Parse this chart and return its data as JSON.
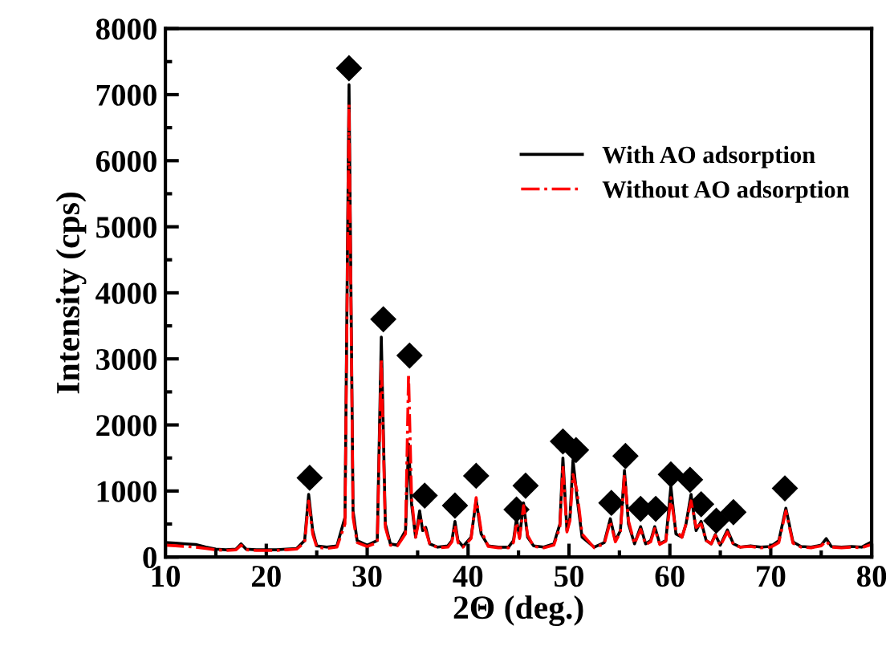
{
  "chart_data": {
    "type": "line",
    "xlabel": "2Θ (deg.)",
    "ylabel": "Intensity (cps)",
    "xlim": [
      10,
      80
    ],
    "xticks": [
      10,
      20,
      30,
      40,
      50,
      60,
      70,
      80
    ],
    "ylim": [
      0,
      8000
    ],
    "yticks": [
      0,
      1000,
      2000,
      3000,
      4000,
      5000,
      6000,
      7000,
      8000
    ],
    "grid": false,
    "legend": "top right",
    "x": [
      10,
      11,
      12,
      13,
      14,
      15,
      16,
      17,
      17.5,
      18,
      19,
      20,
      21,
      22,
      23,
      23.8,
      24.2,
      24.6,
      25,
      26,
      27,
      27.8,
      28.2,
      28.6,
      29,
      30,
      31,
      31.4,
      31.8,
      32.3,
      33,
      33.8,
      34.1,
      34.4,
      34.8,
      35.2,
      35.5,
      35.8,
      36.2,
      37,
      38,
      38.4,
      38.7,
      39,
      39.5,
      40.3,
      40.8,
      41.3,
      42,
      43,
      44,
      44.5,
      44.8,
      45.1,
      45.5,
      45.9,
      46.5,
      47.5,
      48.5,
      49.1,
      49.4,
      49.8,
      50.1,
      50.4,
      50.8,
      51.3,
      52.5,
      53.5,
      54.1,
      54.6,
      55.1,
      55.5,
      55.9,
      56.5,
      57.1,
      57.6,
      58.1,
      58.5,
      59,
      59.6,
      60.1,
      60.6,
      61.2,
      61.6,
      62.1,
      62.6,
      63.1,
      63.6,
      64.1,
      64.5,
      65,
      65.7,
      66.3,
      67,
      68,
      69,
      70,
      70.8,
      71.5,
      72.2,
      73,
      74,
      75,
      75.5,
      76,
      77,
      78,
      79,
      80
    ],
    "series": [
      {
        "name": "With AO adsorption",
        "color": "#000000",
        "line_style": "solid",
        "marker": "none",
        "values": [
          220,
          210,
          200,
          190,
          150,
          120,
          110,
          120,
          200,
          120,
          110,
          110,
          110,
          120,
          130,
          250,
          950,
          400,
          170,
          150,
          170,
          600,
          7150,
          700,
          250,
          180,
          250,
          3330,
          500,
          200,
          180,
          400,
          1710,
          800,
          300,
          700,
          400,
          450,
          200,
          150,
          170,
          250,
          540,
          250,
          160,
          300,
          860,
          350,
          170,
          150,
          150,
          250,
          580,
          300,
          820,
          300,
          170,
          150,
          200,
          500,
          1500,
          400,
          600,
          1470,
          900,
          300,
          150,
          220,
          580,
          250,
          400,
          1310,
          500,
          200,
          460,
          200,
          250,
          460,
          200,
          250,
          1070,
          350,
          300,
          500,
          950,
          400,
          540,
          250,
          200,
          340,
          180,
          410,
          200,
          150,
          170,
          150,
          160,
          250,
          740,
          230,
          160,
          150,
          180,
          280,
          160,
          150,
          160,
          150,
          230
        ]
      },
      {
        "name": "Without AO adsorption",
        "color": "#ff0000",
        "line_style": "dashdot",
        "marker": "none",
        "values": [
          180,
          170,
          160,
          150,
          130,
          110,
          100,
          110,
          180,
          110,
          100,
          100,
          100,
          110,
          120,
          220,
          850,
          350,
          150,
          130,
          150,
          500,
          6850,
          600,
          220,
          160,
          220,
          3000,
          450,
          180,
          170,
          350,
          2770,
          900,
          300,
          600,
          500,
          400,
          200,
          140,
          150,
          230,
          480,
          220,
          150,
          280,
          900,
          400,
          160,
          140,
          140,
          220,
          520,
          280,
          780,
          330,
          160,
          140,
          180,
          450,
          1380,
          380,
          550,
          1250,
          1000,
          350,
          140,
          200,
          540,
          230,
          380,
          1250,
          550,
          200,
          420,
          190,
          230,
          430,
          190,
          240,
          900,
          400,
          300,
          500,
          850,
          450,
          500,
          250,
          200,
          330,
          170,
          380,
          190,
          150,
          160,
          140,
          150,
          220,
          700,
          210,
          150,
          140,
          170,
          240,
          150,
          140,
          150,
          140,
          190
        ]
      },
      {
        "type": "scatter",
        "color": "#000000",
        "marker": "diamond",
        "x": [
          24.3,
          28.2,
          31.6,
          34.2,
          35.7,
          38.7,
          40.8,
          44.8,
          45.7,
          49.4,
          50.7,
          54.2,
          55.6,
          57.1,
          58.6,
          60.1,
          62.0,
          63.1,
          64.6,
          66.3,
          71.4
        ],
        "values": [
          1200,
          7400,
          3600,
          3050,
          930,
          780,
          1230,
          720,
          1080,
          1750,
          1620,
          820,
          1530,
          730,
          730,
          1250,
          1170,
          800,
          550,
          680,
          1040
        ]
      }
    ]
  }
}
